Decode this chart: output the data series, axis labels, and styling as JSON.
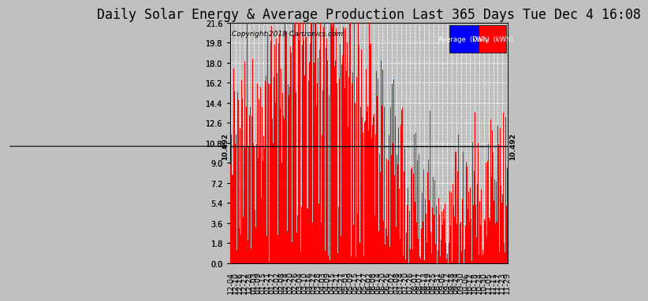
{
  "title": "Daily Solar Energy & Average Production Last 365 Days Tue Dec 4 16:08",
  "copyright_text": "Copyright 2018 Cartronics.com",
  "average_value": 10.492,
  "average_label": "10.492",
  "bar_color": "#FF0000",
  "average_line_color": "#000000",
  "background_color": "#C0C0C0",
  "ylim_max": 21.6,
  "yticks": [
    0.0,
    1.8,
    3.6,
    5.4,
    7.2,
    9.0,
    10.8,
    12.6,
    14.4,
    16.2,
    18.0,
    19.8,
    21.6
  ],
  "grid_color": "#FFFFFF",
  "title_fontsize": 12,
  "tick_fontsize": 7,
  "legend_avg_bg": "#0000FF",
  "legend_daily_bg": "#FF0000",
  "legend_text_color": "#FFFFFF",
  "xtick_labels": [
    "12-04",
    "12-10",
    "12-16",
    "12-22",
    "12-28",
    "01-03",
    "01-09",
    "01-15",
    "01-21",
    "01-27",
    "02-02",
    "02-08",
    "02-14",
    "02-20",
    "02-26",
    "03-04",
    "03-10",
    "03-16",
    "03-22",
    "03-28",
    "04-03",
    "04-09",
    "04-15",
    "04-21",
    "04-27",
    "05-03",
    "05-09",
    "05-15",
    "05-21",
    "05-27",
    "06-02",
    "06-08",
    "06-14",
    "06-20",
    "06-26",
    "07-02",
    "07-08",
    "07-14",
    "07-20",
    "07-26",
    "08-01",
    "08-07",
    "08-13",
    "08-19",
    "08-25",
    "08-31",
    "09-06",
    "09-12",
    "09-18",
    "09-24",
    "09-30",
    "10-06",
    "10-12",
    "10-18",
    "10-24",
    "10-30",
    "11-05",
    "11-11",
    "11-17",
    "11-23",
    "11-29"
  ],
  "num_days": 365
}
